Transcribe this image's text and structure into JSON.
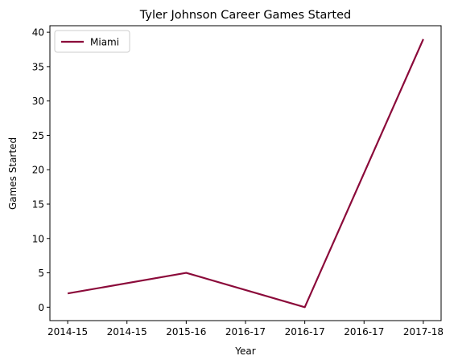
{
  "chart_data": {
    "type": "line",
    "title": "Tyler Johnson  Career Games Started",
    "xlabel": "Year",
    "ylabel": "Games Started",
    "x_tick_labels": [
      "2014-15",
      "2014-15",
      "2015-16",
      "2016-17",
      "2016-17",
      "2016-17",
      "2017-18"
    ],
    "x_tick_positions": [
      0,
      0.5,
      1,
      1.5,
      2,
      2.5,
      3
    ],
    "categories": [
      "2014-15",
      "2015-16",
      "2016-17",
      "2017-18"
    ],
    "series": [
      {
        "name": "Miami",
        "values": [
          2,
          5,
          0,
          39
        ],
        "color": "#8b0a3a"
      }
    ],
    "ylim": [
      -1.95,
      40.95
    ],
    "y_ticks": [
      0,
      5,
      10,
      15,
      20,
      25,
      30,
      35,
      40
    ],
    "xlim": [
      -0.15,
      3.15
    ],
    "grid": false,
    "legend_position": "top-left"
  }
}
